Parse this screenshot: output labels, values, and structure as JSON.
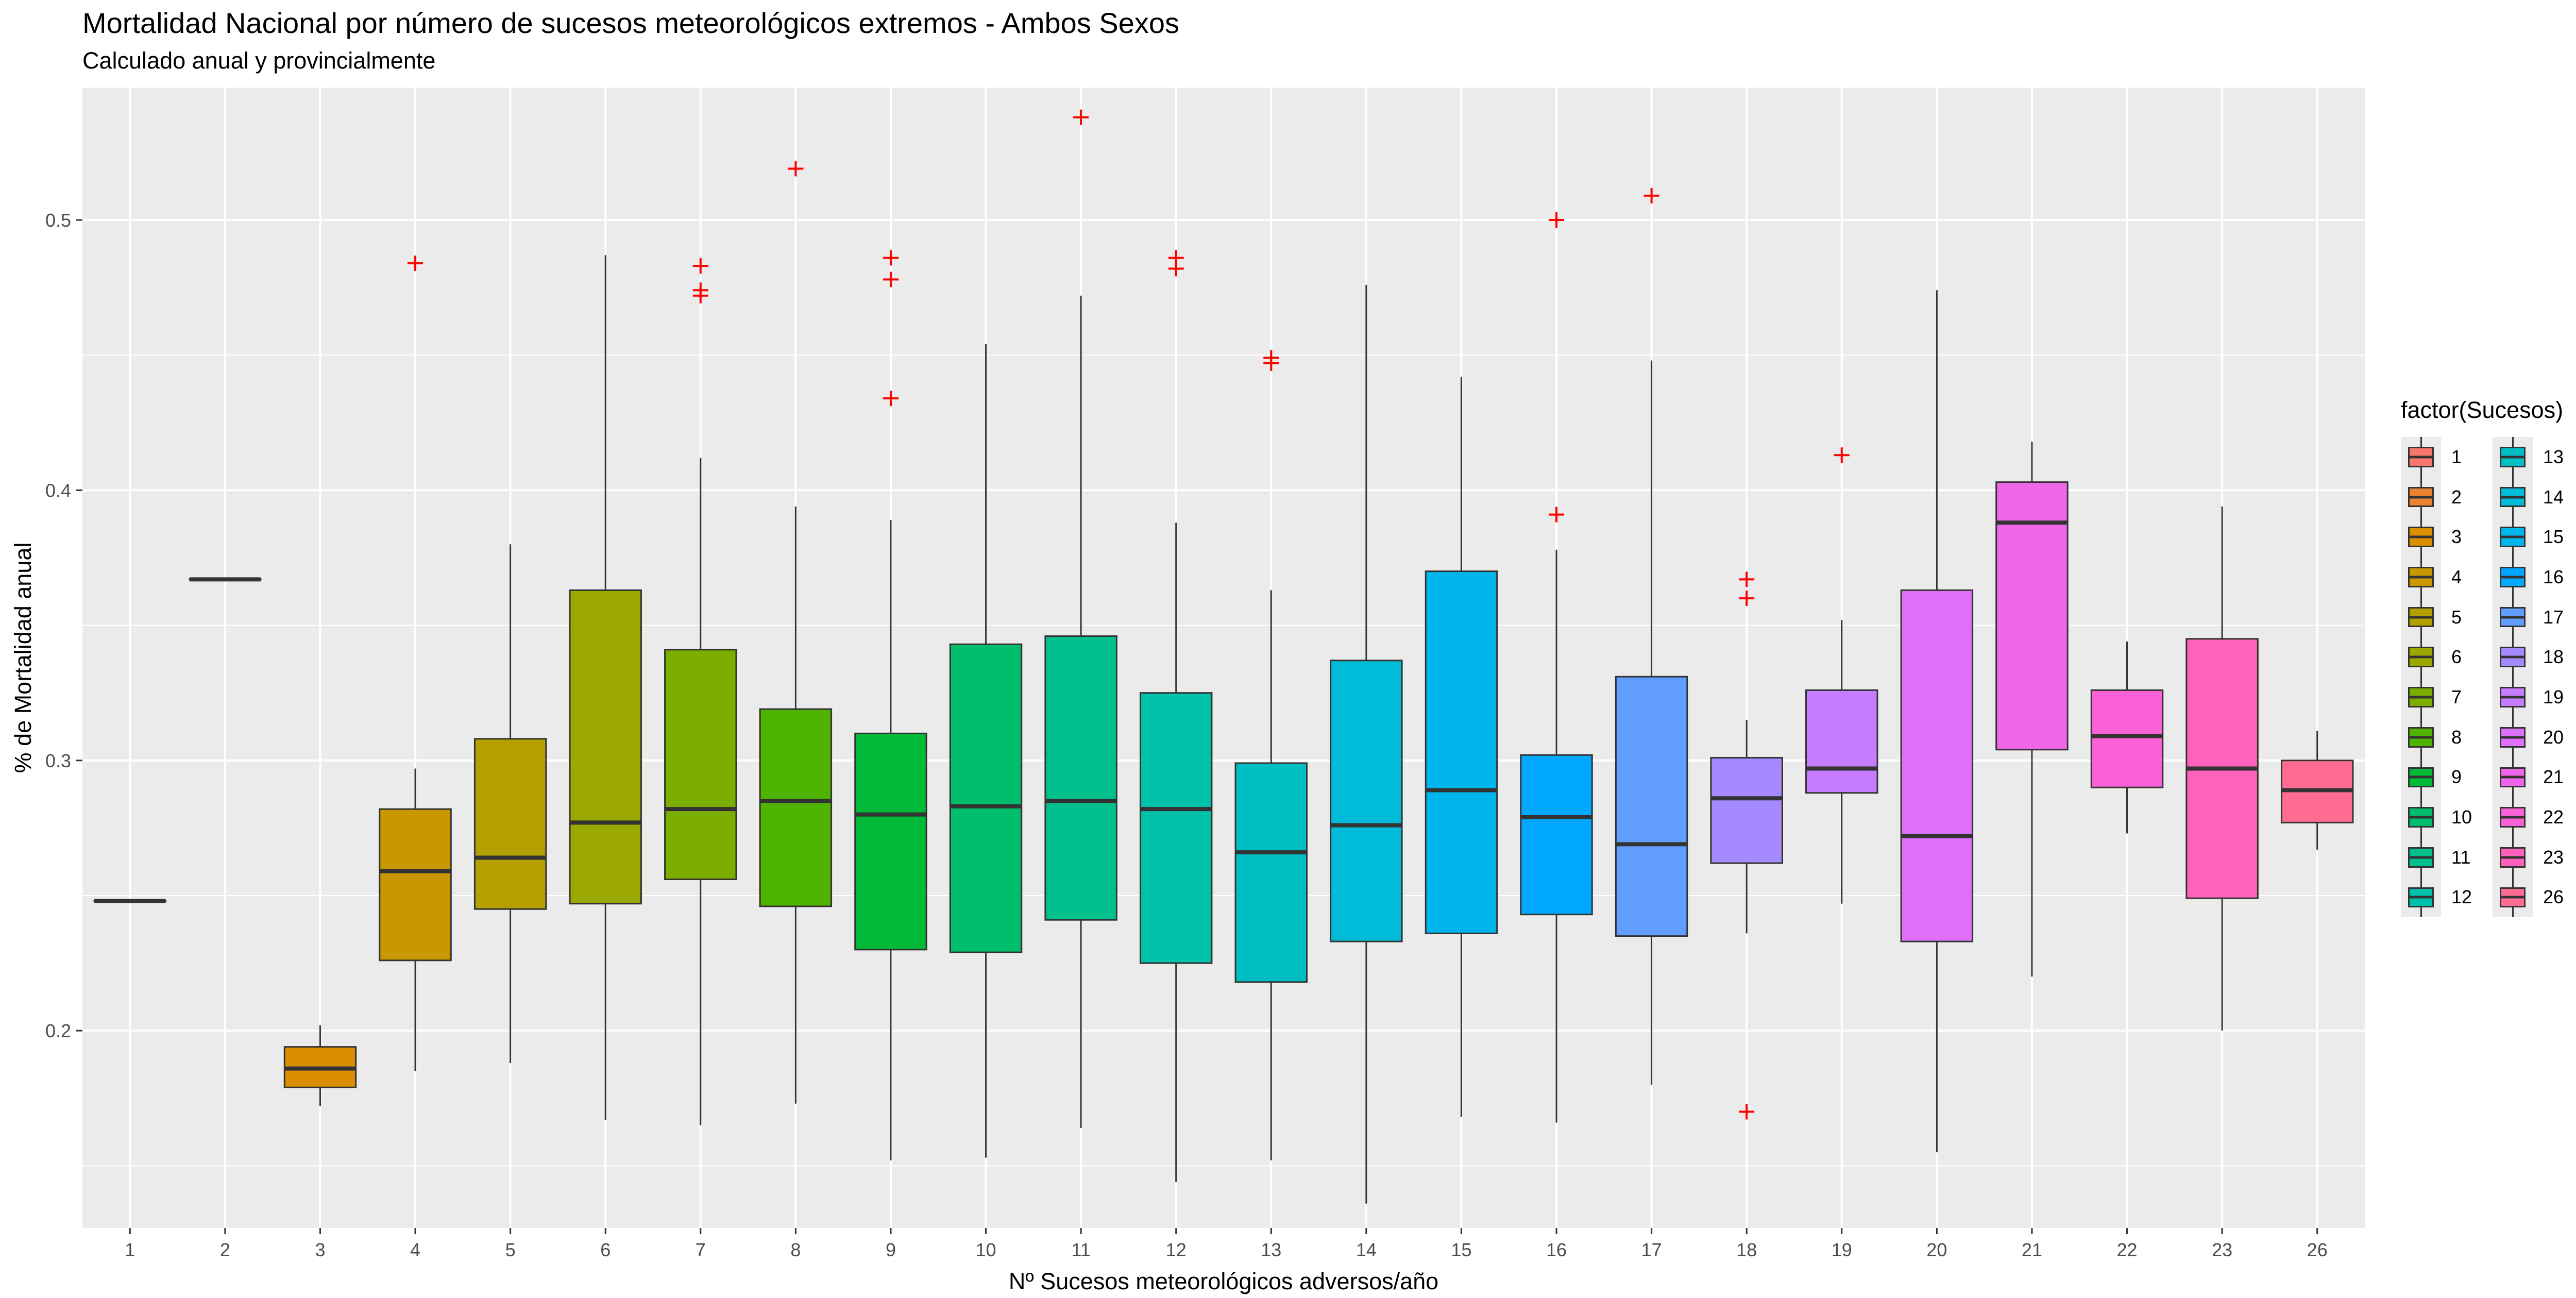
{
  "title": "Mortalidad Nacional por número de sucesos meteorológicos extremos - Ambos Sexos",
  "subtitle": "Calculado anual y provincialmente",
  "chart_data": {
    "type": "boxplot",
    "xlabel": "Nº Sucesos meteorológicos adversos/año",
    "ylabel": "% de Mortalidad anual",
    "ylim": [
      0.127,
      0.549
    ],
    "y_ticks": [
      0.2,
      0.3,
      0.4,
      0.5
    ],
    "grid": true,
    "legend": {
      "title": "factor(Sucesos)",
      "placement": "right"
    },
    "outlier_color": "#ff0000",
    "categories": [
      "1",
      "2",
      "3",
      "4",
      "5",
      "6",
      "7",
      "8",
      "9",
      "10",
      "11",
      "12",
      "13",
      "14",
      "15",
      "16",
      "17",
      "18",
      "19",
      "20",
      "21",
      "22",
      "23",
      "26"
    ],
    "boxes": [
      {
        "cat": "1",
        "min": 0.248,
        "q1": 0.248,
        "median": 0.248,
        "q3": 0.248,
        "max": 0.248,
        "outliers": [],
        "color": "#F8766D"
      },
      {
        "cat": "2",
        "min": 0.367,
        "q1": 0.367,
        "median": 0.367,
        "q3": 0.367,
        "max": 0.367,
        "outliers": [],
        "color": "#EA8331"
      },
      {
        "cat": "3",
        "min": 0.172,
        "q1": 0.179,
        "median": 0.186,
        "q3": 0.194,
        "max": 0.202,
        "outliers": [],
        "color": "#DB8E00"
      },
      {
        "cat": "4",
        "min": 0.185,
        "q1": 0.226,
        "median": 0.259,
        "q3": 0.282,
        "max": 0.297,
        "outliers": [
          0.484
        ],
        "color": "#C99800"
      },
      {
        "cat": "5",
        "min": 0.188,
        "q1": 0.245,
        "median": 0.264,
        "q3": 0.308,
        "max": 0.38,
        "outliers": [],
        "color": "#B3A000"
      },
      {
        "cat": "6",
        "min": 0.167,
        "q1": 0.247,
        "median": 0.277,
        "q3": 0.363,
        "max": 0.487,
        "outliers": [],
        "color": "#9AA800"
      },
      {
        "cat": "7",
        "min": 0.165,
        "q1": 0.256,
        "median": 0.282,
        "q3": 0.341,
        "max": 0.412,
        "outliers": [
          0.472,
          0.474,
          0.483
        ],
        "color": "#7CAE00"
      },
      {
        "cat": "8",
        "min": 0.173,
        "q1": 0.246,
        "median": 0.285,
        "q3": 0.319,
        "max": 0.394,
        "outliers": [
          0.519
        ],
        "color": "#4FB400"
      },
      {
        "cat": "9",
        "min": 0.152,
        "q1": 0.23,
        "median": 0.28,
        "q3": 0.31,
        "max": 0.389,
        "outliers": [
          0.434,
          0.478,
          0.486
        ],
        "color": "#00BA38"
      },
      {
        "cat": "10",
        "min": 0.153,
        "q1": 0.229,
        "median": 0.283,
        "q3": 0.343,
        "max": 0.454,
        "outliers": [],
        "color": "#00BE6C"
      },
      {
        "cat": "11",
        "min": 0.164,
        "q1": 0.241,
        "median": 0.285,
        "q3": 0.346,
        "max": 0.472,
        "outliers": [
          0.538
        ],
        "color": "#00C08D"
      },
      {
        "cat": "12",
        "min": 0.144,
        "q1": 0.225,
        "median": 0.282,
        "q3": 0.325,
        "max": 0.388,
        "outliers": [
          0.482,
          0.486
        ],
        "color": "#00C1A9"
      },
      {
        "cat": "13",
        "min": 0.152,
        "q1": 0.218,
        "median": 0.266,
        "q3": 0.299,
        "max": 0.363,
        "outliers": [
          0.447,
          0.449
        ],
        "color": "#00BFC4"
      },
      {
        "cat": "14",
        "min": 0.136,
        "q1": 0.233,
        "median": 0.276,
        "q3": 0.337,
        "max": 0.476,
        "outliers": [],
        "color": "#00BCD8"
      },
      {
        "cat": "15",
        "min": 0.168,
        "q1": 0.236,
        "median": 0.289,
        "q3": 0.37,
        "max": 0.442,
        "outliers": [],
        "color": "#00B5EB"
      },
      {
        "cat": "16",
        "min": 0.166,
        "q1": 0.243,
        "median": 0.279,
        "q3": 0.302,
        "max": 0.378,
        "outliers": [
          0.391,
          0.5
        ],
        "color": "#00A9FF"
      },
      {
        "cat": "17",
        "min": 0.18,
        "q1": 0.235,
        "median": 0.269,
        "q3": 0.331,
        "max": 0.448,
        "outliers": [
          0.509
        ],
        "color": "#619CFF"
      },
      {
        "cat": "18",
        "min": 0.236,
        "q1": 0.262,
        "median": 0.286,
        "q3": 0.301,
        "max": 0.315,
        "outliers": [
          0.17,
          0.36,
          0.367
        ],
        "color": "#A58AFF"
      },
      {
        "cat": "19",
        "min": 0.247,
        "q1": 0.288,
        "median": 0.297,
        "q3": 0.326,
        "max": 0.352,
        "outliers": [
          0.413
        ],
        "color": "#C77CFF"
      },
      {
        "cat": "20",
        "min": 0.155,
        "q1": 0.233,
        "median": 0.272,
        "q3": 0.363,
        "max": 0.474,
        "outliers": [],
        "color": "#DF70F8"
      },
      {
        "cat": "21",
        "min": 0.22,
        "q1": 0.304,
        "median": 0.388,
        "q3": 0.403,
        "max": 0.418,
        "outliers": [],
        "color": "#F066EA"
      },
      {
        "cat": "22",
        "min": 0.273,
        "q1": 0.29,
        "median": 0.309,
        "q3": 0.326,
        "max": 0.344,
        "outliers": [],
        "color": "#FB61D7"
      },
      {
        "cat": "23",
        "min": 0.2,
        "q1": 0.249,
        "median": 0.297,
        "q3": 0.345,
        "max": 0.394,
        "outliers": [],
        "color": "#FF62BC"
      },
      {
        "cat": "26",
        "min": 0.267,
        "q1": 0.277,
        "median": 0.289,
        "q3": 0.3,
        "max": 0.311,
        "outliers": [],
        "color": "#FF6C91"
      }
    ]
  }
}
